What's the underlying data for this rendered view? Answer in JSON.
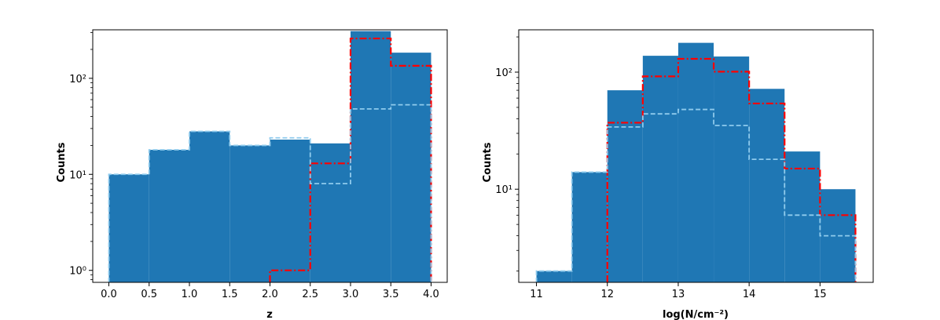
{
  "colors": {
    "bar_fill": "#1f77b4",
    "subset_a_line": "#ff0000",
    "subset_b_line": "#8fcbed",
    "axis": "#000000",
    "background": "#ffffff"
  },
  "chart_data": [
    {
      "type": "bar",
      "histogram": true,
      "yscale": "log",
      "xlabel": "z",
      "ylabel": "Counts",
      "xlim": [
        -0.2,
        4.2
      ],
      "ylim": [
        0.75,
        320
      ],
      "xticks": [
        "0.0",
        "0.5",
        "1.0",
        "1.5",
        "2.0",
        "2.5",
        "3.0",
        "3.5",
        "4.0"
      ],
      "yticks": [
        1,
        10,
        100
      ],
      "bin_edges": [
        0.0,
        0.5,
        1.0,
        1.5,
        2.0,
        2.5,
        3.0,
        3.5,
        4.0
      ],
      "series": [
        {
          "style": "filled",
          "values": [
            10,
            18,
            28,
            20,
            23,
            21,
            310,
            185
          ]
        },
        {
          "style": "dash-dot",
          "values": [
            0,
            0,
            0,
            0,
            1,
            13,
            260,
            135
          ]
        },
        {
          "style": "dashed",
          "values": [
            10,
            18,
            28,
            20,
            24,
            8,
            48,
            53
          ]
        }
      ]
    },
    {
      "type": "bar",
      "histogram": true,
      "yscale": "log",
      "xlabel": "log(N/cm⁻²)",
      "ylabel": "Counts",
      "xlim": [
        10.75,
        15.75
      ],
      "ylim": [
        1.6,
        230
      ],
      "xticks": [
        "11",
        "12",
        "13",
        "14",
        "15"
      ],
      "yticks": [
        10,
        100
      ],
      "bin_edges": [
        11.0,
        11.5,
        12.0,
        12.5,
        13.0,
        13.5,
        14.0,
        14.5,
        15.0,
        15.5
      ],
      "series": [
        {
          "style": "filled",
          "values": [
            2,
            14,
            70,
            138,
            178,
            136,
            72,
            21,
            10
          ]
        },
        {
          "style": "dash-dot",
          "values": [
            0,
            0,
            37,
            92,
            130,
            101,
            54,
            15,
            6
          ]
        },
        {
          "style": "dashed",
          "values": [
            2,
            14,
            34,
            44,
            48,
            35,
            18,
            6,
            4
          ]
        }
      ]
    }
  ]
}
